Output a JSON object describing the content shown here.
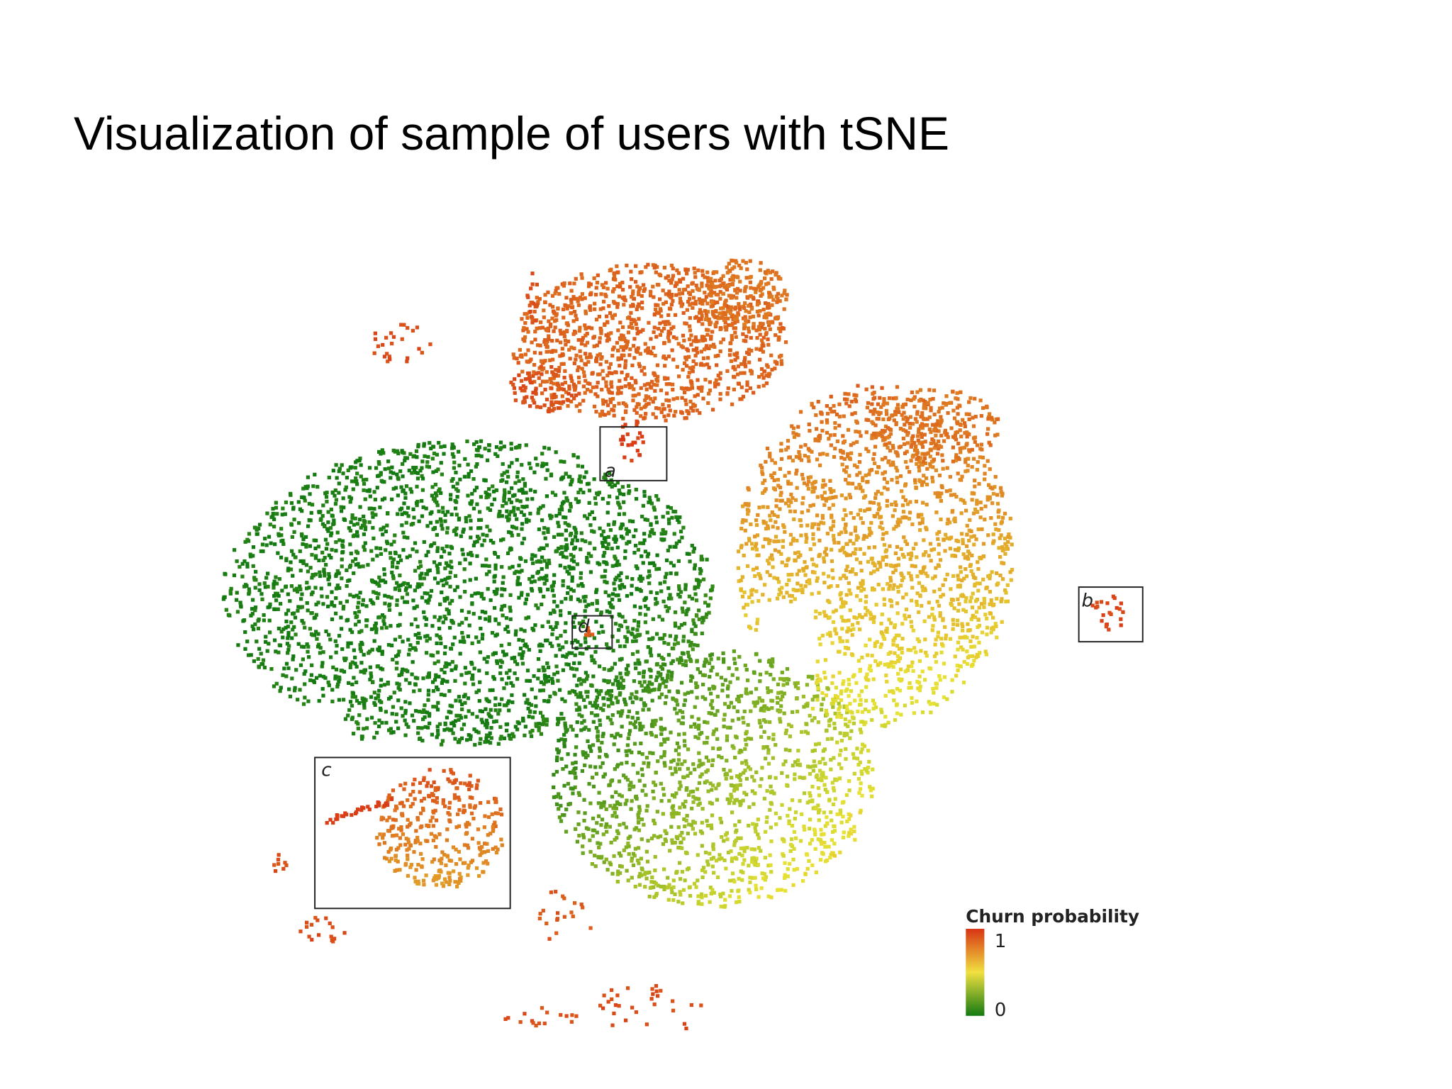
{
  "title": "Visualization of sample of users with tSNE",
  "plot": {
    "box_labels": [
      "a",
      "b",
      "c",
      "d"
    ]
  },
  "legend": {
    "title": "Churn probability",
    "labels": [
      "1",
      "0"
    ]
  }
}
